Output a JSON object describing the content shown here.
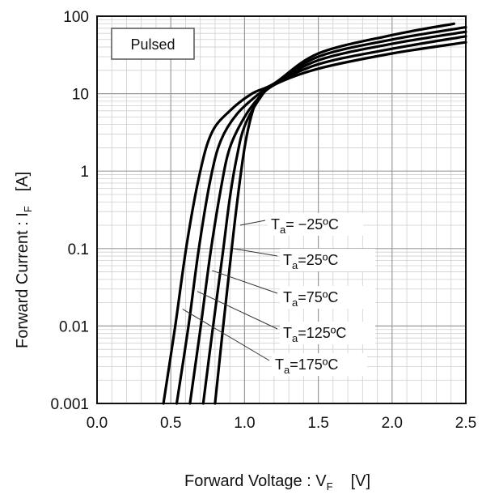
{
  "chart_data": {
    "type": "line",
    "xlabel": "Forward Voltage : V",
    "xlabel_sub": "F",
    "xlabel_unit": "[V]",
    "ylabel": "Forward Current : I",
    "ylabel_sub": "F",
    "ylabel_unit": "[A]",
    "xlim": [
      0.0,
      2.5
    ],
    "ylim": [
      0.001,
      100
    ],
    "yscale": "log",
    "grid": true,
    "x_ticks": [
      "0.0",
      "0.5",
      "1.0",
      "1.5",
      "2.0",
      "2.5"
    ],
    "y_ticks": [
      "0.001",
      "0.01",
      "0.1",
      "1",
      "10",
      "100"
    ],
    "badge": "Pulsed",
    "series": [
      {
        "name": "Ta= −25ºC",
        "label_main": "T",
        "label_sub": "a",
        "label_rest": "= −25ºC",
        "x": [
          0.8,
          0.85,
          0.9,
          0.95,
          1.0,
          1.05,
          1.1,
          1.2,
          1.5,
          2.0,
          2.5
        ],
        "y": [
          0.001,
          0.008,
          0.06,
          0.4,
          2.0,
          5.5,
          9.0,
          13.0,
          21.0,
          33.0,
          46.0
        ]
      },
      {
        "name": "Ta=25ºC",
        "label_main": "T",
        "label_sub": "a",
        "label_rest": "=25ºC",
        "x": [
          0.72,
          0.78,
          0.85,
          0.9,
          0.95,
          1.0,
          1.1,
          1.2,
          1.5,
          2.0,
          2.5
        ],
        "y": [
          0.001,
          0.008,
          0.08,
          0.45,
          1.6,
          3.8,
          8.5,
          13.0,
          24.0,
          38.0,
          55.0
        ]
      },
      {
        "name": "Ta=75ºC",
        "label_main": "T",
        "label_sub": "a",
        "label_rest": "=75ºC",
        "x": [
          0.63,
          0.7,
          0.77,
          0.84,
          0.9,
          1.0,
          1.1,
          1.2,
          1.5,
          2.0,
          2.5
        ],
        "y": [
          0.001,
          0.009,
          0.09,
          0.6,
          2.0,
          5.0,
          9.0,
          13.0,
          27.0,
          44.0,
          63.0
        ]
      },
      {
        "name": "Ta=125ºC",
        "label_main": "T",
        "label_sub": "a",
        "label_rest": "=125ºC",
        "x": [
          0.54,
          0.62,
          0.69,
          0.77,
          0.84,
          0.95,
          1.1,
          1.2,
          1.5,
          2.0,
          2.5
        ],
        "y": [
          0.001,
          0.01,
          0.1,
          0.8,
          2.5,
          5.5,
          10.0,
          13.0,
          30.0,
          50.0,
          72.0
        ]
      },
      {
        "name": "Ta=175ºC",
        "label_main": "T",
        "label_sub": "a",
        "label_rest": "=175ºC",
        "x": [
          0.45,
          0.53,
          0.61,
          0.7,
          0.78,
          0.9,
          1.05,
          1.2,
          1.5,
          2.0,
          2.42
        ],
        "y": [
          0.001,
          0.01,
          0.12,
          1.0,
          3.2,
          6.0,
          10.0,
          13.5,
          33.0,
          57.0,
          80.0
        ]
      }
    ],
    "annotations": [
      {
        "series": 0,
        "point": [
          0.97,
          0.2
        ]
      },
      {
        "series": 1,
        "point": [
          0.92,
          0.1
        ]
      },
      {
        "series": 2,
        "point": [
          0.78,
          0.052
        ]
      },
      {
        "series": 3,
        "point": [
          0.68,
          0.028
        ]
      },
      {
        "series": 4,
        "point": [
          0.58,
          0.0165
        ]
      }
    ]
  }
}
